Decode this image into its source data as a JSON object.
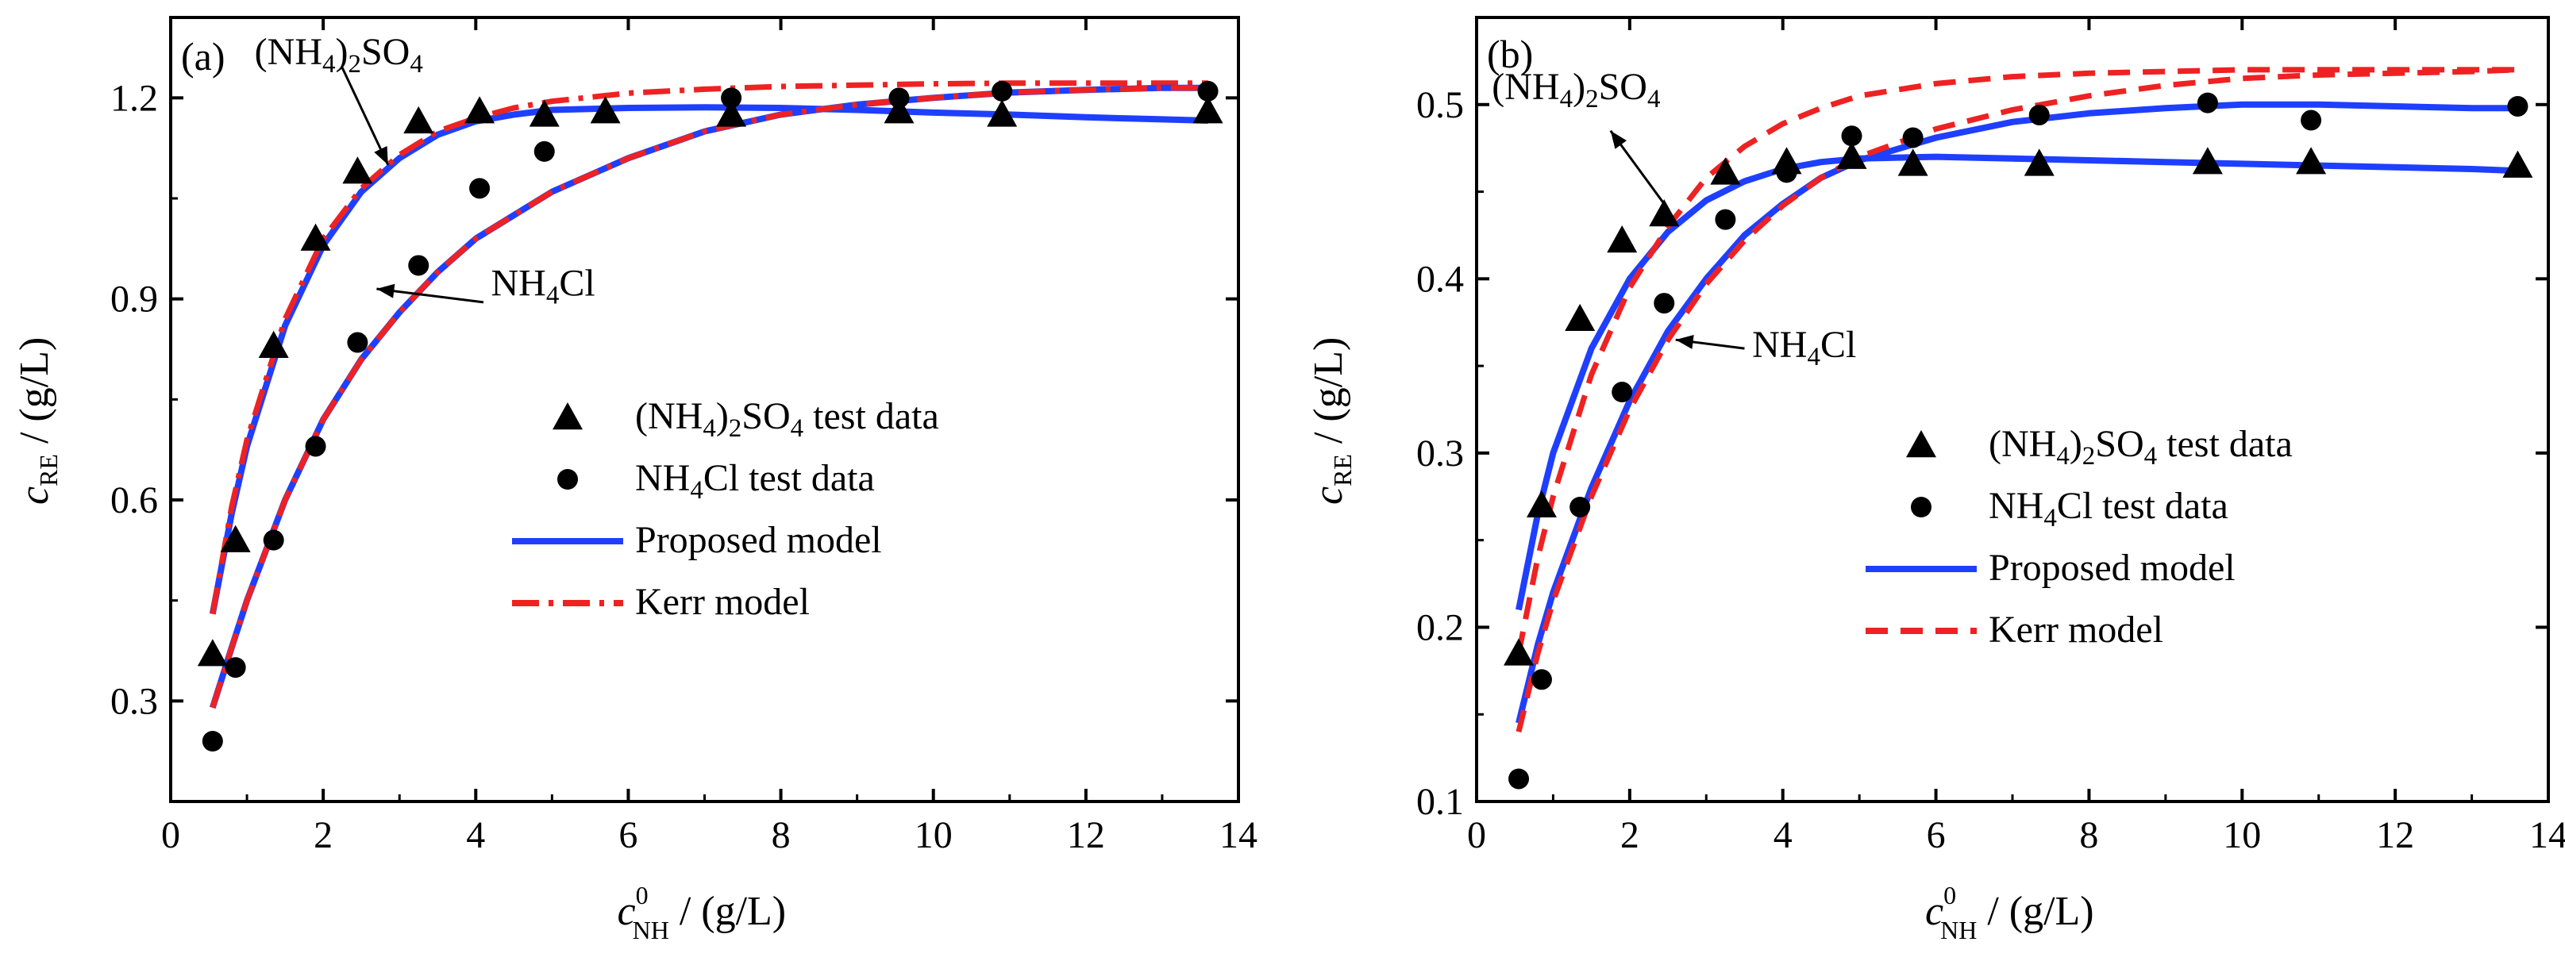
{
  "chart_data": [
    {
      "type": "scatter",
      "panel_label": "(a)",
      "xlabel": {
        "main": "c",
        "sup": "0",
        "sub": "NH",
        "unit": " / (g/L)"
      },
      "ylabel": {
        "main": "c",
        "sub": "RE",
        "unit": " / (g/L)"
      },
      "xlim": [
        0,
        14
      ],
      "ylim": [
        0.15,
        1.32
      ],
      "xticks": [
        0,
        2,
        4,
        6,
        8,
        10,
        12,
        14
      ],
      "xtick_labels": [
        "0",
        "2",
        "4",
        "6",
        "8",
        "10",
        "12",
        "14"
      ],
      "yticks": [
        0.3,
        0.6,
        0.9,
        1.2
      ],
      "ytick_labels": [
        "0.3",
        "0.6",
        "0.9",
        "1.2"
      ],
      "series": [
        {
          "name": "(NH4)2SO4 test data",
          "kind": "marker",
          "marker": "triangle",
          "x": [
            0.55,
            0.85,
            1.35,
            1.9,
            2.45,
            3.25,
            4.05,
            4.9,
            5.7,
            7.35,
            9.55,
            10.9,
            13.6
          ],
          "y": [
            0.37,
            0.54,
            0.83,
            0.99,
            1.09,
            1.165,
            1.18,
            1.175,
            1.18,
            1.175,
            1.18,
            1.175,
            1.18
          ]
        },
        {
          "name": "NH4Cl test data",
          "kind": "marker",
          "marker": "circle",
          "x": [
            0.55,
            0.85,
            1.35,
            1.9,
            2.45,
            3.25,
            4.05,
            4.9,
            7.35,
            9.55,
            10.9,
            13.6
          ],
          "y": [
            0.24,
            0.35,
            0.54,
            0.68,
            0.835,
            0.95,
            1.065,
            1.12,
            1.2,
            1.2,
            1.21,
            1.21
          ]
        },
        {
          "name": "Proposed model ((NH4)2SO4)",
          "kind": "line",
          "style": "solid",
          "color": "#1f3fff",
          "x": [
            0.55,
            0.8,
            1.0,
            1.5,
            2.0,
            2.5,
            3.0,
            3.5,
            4.0,
            4.5,
            5.0,
            6.0,
            7.0,
            8.0,
            9.0,
            10.0,
            11.0,
            12.0,
            13.0,
            13.6
          ],
          "y": [
            0.43,
            0.58,
            0.68,
            0.86,
            0.98,
            1.06,
            1.11,
            1.145,
            1.165,
            1.175,
            1.182,
            1.185,
            1.186,
            1.185,
            1.182,
            1.178,
            1.175,
            1.171,
            1.168,
            1.166
          ]
        },
        {
          "name": "Kerr model ((NH4)2SO4)",
          "kind": "line",
          "style": "dashdot",
          "color": "#ee2222",
          "x": [
            0.55,
            0.8,
            1.0,
            1.5,
            2.0,
            2.5,
            3.0,
            3.5,
            4.0,
            4.5,
            5.0,
            6.0,
            7.0,
            8.0,
            9.0,
            10.0,
            11.0,
            12.0,
            13.0,
            13.6
          ],
          "y": [
            0.43,
            0.59,
            0.69,
            0.87,
            0.99,
            1.065,
            1.115,
            1.15,
            1.17,
            1.185,
            1.195,
            1.207,
            1.213,
            1.217,
            1.219,
            1.221,
            1.222,
            1.222,
            1.222,
            1.222
          ]
        },
        {
          "name": "Proposed model (NH4Cl)",
          "kind": "line",
          "style": "solid",
          "color": "#1f3fff",
          "x": [
            0.55,
            0.8,
            1.0,
            1.5,
            2.0,
            2.5,
            3.0,
            3.5,
            4.0,
            5.0,
            6.0,
            7.0,
            8.0,
            9.0,
            10.0,
            11.0,
            12.0,
            13.0,
            13.6
          ],
          "y": [
            0.29,
            0.38,
            0.45,
            0.6,
            0.72,
            0.81,
            0.88,
            0.94,
            0.99,
            1.06,
            1.11,
            1.15,
            1.175,
            1.19,
            1.2,
            1.208,
            1.212,
            1.215,
            1.215
          ]
        },
        {
          "name": "Kerr model (NH4Cl)",
          "kind": "line",
          "style": "dashdot",
          "color": "#ee2222",
          "x": [
            0.55,
            0.8,
            1.0,
            1.5,
            2.0,
            2.5,
            3.0,
            3.5,
            4.0,
            5.0,
            6.0,
            7.0,
            8.0,
            9.0,
            10.0,
            11.0,
            12.0,
            13.0,
            13.6
          ],
          "y": [
            0.29,
            0.38,
            0.45,
            0.6,
            0.72,
            0.81,
            0.88,
            0.94,
            0.99,
            1.06,
            1.11,
            1.15,
            1.175,
            1.19,
            1.2,
            1.208,
            1.212,
            1.215,
            1.215
          ]
        }
      ],
      "annotations": [
        {
          "text": "(NH4)2SO4",
          "main": "(NH",
          "s1": "4",
          "mid": ")",
          "s2": "2",
          "end": "SO",
          "s3": "4",
          "x": 1.1,
          "y": 1.25,
          "arrow_to": [
            2.85,
            1.1
          ],
          "arrow_from": [
            2.25,
            1.245
          ]
        },
        {
          "text": "NH4Cl",
          "main": "NH",
          "s1": "4",
          "end": "Cl",
          "x": 4.2,
          "y": 0.905,
          "arrow_to": [
            2.7,
            0.915
          ],
          "arrow_from": [
            4.1,
            0.895
          ]
        }
      ],
      "legend": {
        "position": "center-right",
        "items": [
          {
            "label": "(NH4)2SO4 test data",
            "parts": [
              "(NH",
              "4",
              ")",
              "2",
              "SO",
              "4",
              " test data"
            ],
            "symbol": "triangle"
          },
          {
            "label": "NH4Cl test data",
            "parts": [
              "NH",
              "4",
              "Cl test data"
            ],
            "symbol": "circle"
          },
          {
            "label": "Proposed model",
            "symbol": "solid",
            "color": "#1f3fff"
          },
          {
            "label": "Kerr model",
            "symbol": "dashdot",
            "color": "#ee2222"
          }
        ]
      }
    },
    {
      "type": "scatter",
      "panel_label": "(b)",
      "xlabel": {
        "main": "c",
        "sup": "0",
        "sub": "NH",
        "unit": " / (g/L)"
      },
      "ylabel": {
        "main": "c",
        "sub": "RE",
        "unit": " / (g/L)"
      },
      "xlim": [
        0,
        14
      ],
      "ylim": [
        0.1,
        0.55
      ],
      "xticks": [
        0,
        2,
        4,
        6,
        8,
        10,
        12,
        14
      ],
      "xtick_labels": [
        "0",
        "2",
        "4",
        "6",
        "8",
        "10",
        "12",
        "14"
      ],
      "yticks": [
        0.1,
        0.2,
        0.3,
        0.4,
        0.5
      ],
      "ytick_labels": [
        "0.1",
        "0.2",
        "0.3",
        "0.4",
        "0.5"
      ],
      "series": [
        {
          "name": "(NH4)2SO4 test data",
          "kind": "marker",
          "marker": "triangle",
          "x": [
            0.55,
            0.85,
            1.35,
            1.9,
            2.45,
            3.25,
            4.05,
            4.9,
            5.7,
            7.35,
            9.55,
            10.9,
            13.6
          ],
          "y": [
            0.185,
            0.27,
            0.377,
            0.422,
            0.437,
            0.461,
            0.467,
            0.47,
            0.466,
            0.466,
            0.467,
            0.467,
            0.465
          ]
        },
        {
          "name": "NH4Cl test data",
          "kind": "marker",
          "marker": "circle",
          "x": [
            0.55,
            0.85,
            1.35,
            1.9,
            2.45,
            3.25,
            4.05,
            4.9,
            5.7,
            7.35,
            9.55,
            10.9,
            13.6
          ],
          "y": [
            0.113,
            0.17,
            0.269,
            0.335,
            0.386,
            0.434,
            0.461,
            0.482,
            0.481,
            0.494,
            0.501,
            0.491,
            0.499
          ]
        },
        {
          "name": "Proposed model ((NH4)2SO4)",
          "kind": "line",
          "style": "solid",
          "color": "#1f3fff",
          "x": [
            0.55,
            0.8,
            1.0,
            1.5,
            2.0,
            2.5,
            3.0,
            3.5,
            4.0,
            4.5,
            5.0,
            6.0,
            7.0,
            8.0,
            9.0,
            10.0,
            11.0,
            12.0,
            13.0,
            13.6
          ],
          "y": [
            0.21,
            0.265,
            0.3,
            0.36,
            0.4,
            0.427,
            0.445,
            0.456,
            0.463,
            0.467,
            0.469,
            0.47,
            0.469,
            0.468,
            0.467,
            0.466,
            0.465,
            0.464,
            0.463,
            0.462
          ]
        },
        {
          "name": "Kerr model ((NH4)2SO4)",
          "kind": "line",
          "style": "dashed",
          "color": "#ee2222",
          "x": [
            0.55,
            0.8,
            1.0,
            1.5,
            2.0,
            2.5,
            3.0,
            3.5,
            4.0,
            4.5,
            5.0,
            6.0,
            7.0,
            8.0,
            9.0,
            10.0,
            11.0,
            12.0,
            13.0,
            13.6
          ],
          "y": [
            0.185,
            0.24,
            0.275,
            0.345,
            0.395,
            0.43,
            0.458,
            0.476,
            0.489,
            0.498,
            0.505,
            0.512,
            0.516,
            0.518,
            0.519,
            0.52,
            0.52,
            0.52,
            0.52,
            0.52
          ]
        },
        {
          "name": "Proposed model (NH4Cl)",
          "kind": "line",
          "style": "solid",
          "color": "#1f3fff",
          "x": [
            0.55,
            0.8,
            1.0,
            1.5,
            2.0,
            2.5,
            3.0,
            3.5,
            4.0,
            4.5,
            5.0,
            6.0,
            7.0,
            8.0,
            9.0,
            10.0,
            11.0,
            12.0,
            13.0,
            13.6
          ],
          "y": [
            0.145,
            0.19,
            0.22,
            0.28,
            0.33,
            0.37,
            0.4,
            0.425,
            0.443,
            0.458,
            0.468,
            0.481,
            0.49,
            0.495,
            0.498,
            0.5,
            0.5,
            0.499,
            0.498,
            0.498
          ]
        },
        {
          "name": "Kerr model (NH4Cl)",
          "kind": "line",
          "style": "dashed",
          "color": "#ee2222",
          "x": [
            0.55,
            0.8,
            1.0,
            1.5,
            2.0,
            2.5,
            3.0,
            3.5,
            4.0,
            4.5,
            5.0,
            6.0,
            7.0,
            8.0,
            9.0,
            10.0,
            11.0,
            12.0,
            13.0,
            13.6
          ],
          "y": [
            0.14,
            0.185,
            0.215,
            0.275,
            0.325,
            0.365,
            0.397,
            0.422,
            0.442,
            0.458,
            0.47,
            0.486,
            0.497,
            0.505,
            0.511,
            0.515,
            0.517,
            0.518,
            0.519,
            0.52
          ]
        }
      ],
      "annotations": [
        {
          "text": "(NH4)2SO4",
          "main": "(NH",
          "s1": "4",
          "mid": ")",
          "s2": "2",
          "end": "SO",
          "s3": "4",
          "x": 0.2,
          "y": 0.503,
          "arrow_to": [
            1.75,
            0.485
          ],
          "arrow_from": [
            2.5,
            0.44
          ]
        },
        {
          "text": "NH4Cl",
          "main": "NH",
          "s1": "4",
          "end": "Cl",
          "x": 3.6,
          "y": 0.355,
          "arrow_to": [
            2.6,
            0.365
          ],
          "arrow_from": [
            3.5,
            0.36
          ]
        }
      ],
      "legend": {
        "position": "center-right",
        "items": [
          {
            "label": "(NH4)2SO4 test data",
            "parts": [
              "(NH",
              "4",
              ")",
              "2",
              "SO",
              "4",
              " test data"
            ],
            "symbol": "triangle"
          },
          {
            "label": "NH4Cl test data",
            "parts": [
              "NH",
              "4",
              "Cl test data"
            ],
            "symbol": "circle"
          },
          {
            "label": "Proposed model",
            "symbol": "solid",
            "color": "#1f3fff"
          },
          {
            "label": "Kerr model",
            "symbol": "dashed",
            "color": "#ee2222"
          }
        ]
      }
    }
  ]
}
